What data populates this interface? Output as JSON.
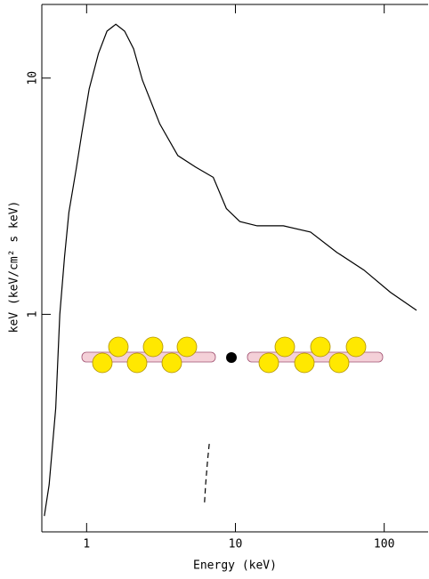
{
  "chart_data": {
    "type": "line",
    "xlabel": "Energy (keV)",
    "ylabel": "keV (keV/cm² s keV)",
    "xscale": "log",
    "yscale": "log",
    "xlim": [
      0.5,
      200
    ],
    "ylim": [
      0.12,
      20.5
    ],
    "xticks": [
      1,
      10,
      100
    ],
    "yticks": [
      1,
      10
    ],
    "series": [
      {
        "color": "#000000",
        "style": "solid",
        "x": [
          0.52,
          0.56,
          0.62,
          0.66,
          0.71,
          0.76,
          0.85,
          0.93,
          1.04,
          1.2,
          1.37,
          1.57,
          1.8,
          2.07,
          2.37,
          3.1,
          4.1,
          5.4,
          7.1,
          8.7,
          10.7,
          14,
          21,
          32,
          48,
          73,
          110,
          165
        ],
        "values": [
          0.14,
          0.19,
          0.4,
          1.0,
          1.75,
          2.7,
          4.1,
          5.9,
          9.0,
          12.7,
          15.8,
          16.9,
          15.8,
          13.3,
          9.8,
          6.4,
          4.7,
          4.2,
          3.8,
          2.8,
          2.47,
          2.37,
          2.37,
          2.23,
          1.83,
          1.54,
          1.24,
          1.04
        ]
      },
      {
        "color": "#000000",
        "style": "dashed",
        "x": [
          6.2,
          6.3,
          6.5,
          6.7
        ],
        "values": [
          0.16,
          0.19,
          0.24,
          0.29
        ]
      }
    ]
  }
}
